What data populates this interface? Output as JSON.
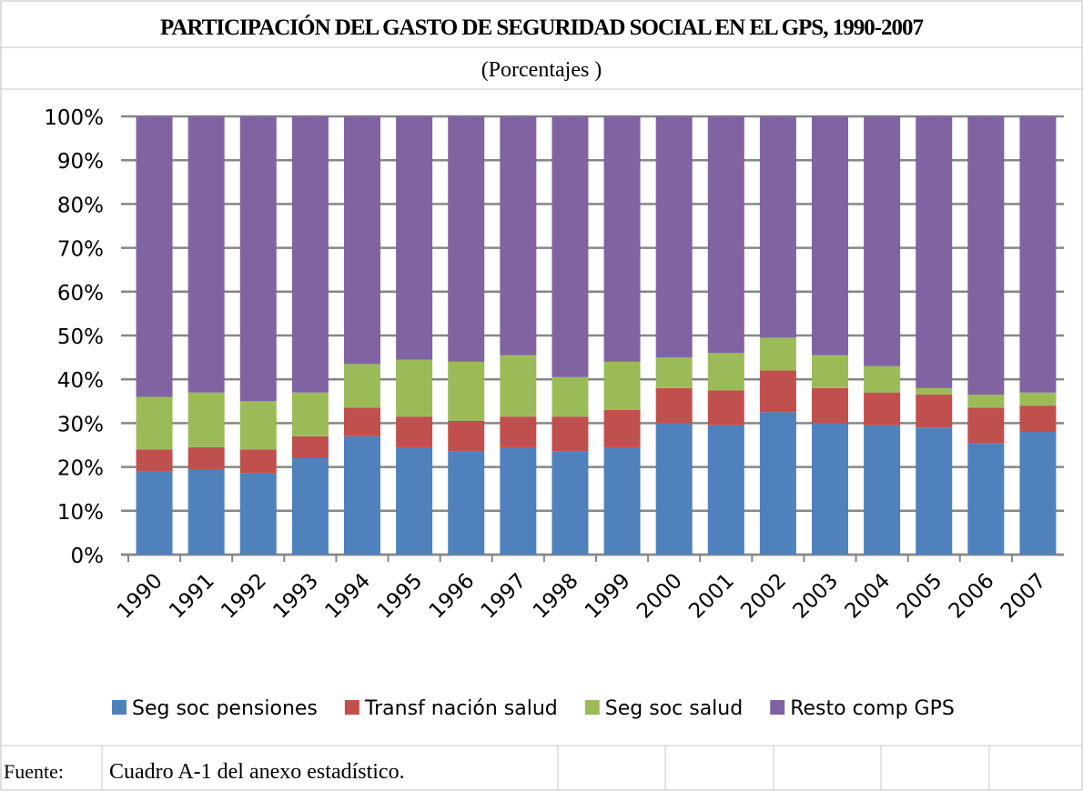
{
  "chart_data": {
    "type": "stacked_bar",
    "title": "PARTICIPACIÓN DEL GASTO DE SEGURIDAD SOCIAL EN EL GPS, 1990-2007",
    "subtitle": "(Porcentajes )",
    "categories": [
      "1990",
      "1991",
      "1992",
      "1993",
      "1994",
      "1995",
      "1996",
      "1997",
      "1998",
      "1999",
      "2000",
      "2001",
      "2002",
      "2003",
      "2004",
      "2005",
      "2006",
      "2007"
    ],
    "series": [
      {
        "name": "Seg soc pensiones",
        "color": "#4f81bd",
        "values": [
          19,
          19.5,
          18.5,
          22,
          27,
          24.5,
          23.5,
          24.5,
          23.5,
          24.5,
          30,
          29.5,
          32.5,
          30,
          29.5,
          29,
          25.5,
          28
        ]
      },
      {
        "name": "Transf nación salud",
        "color": "#c0504d",
        "values": [
          5,
          5,
          5.5,
          5,
          6.5,
          7,
          7,
          7,
          8,
          8.5,
          8,
          8,
          9.5,
          8,
          7.5,
          7.5,
          8,
          6
        ]
      },
      {
        "name": "Seg soc salud",
        "color": "#9bbb59",
        "values": [
          12,
          12.5,
          11,
          10,
          10,
          13,
          13.5,
          14,
          9,
          11,
          7,
          8.5,
          7.5,
          7.5,
          6,
          1.5,
          3,
          3
        ]
      },
      {
        "name": "Resto comp GPS",
        "color": "#8064a2",
        "values": [
          64,
          63,
          65,
          63,
          56.5,
          55.5,
          56,
          54.5,
          59.5,
          56,
          55,
          54,
          50.5,
          54.5,
          57,
          62,
          63.5,
          63
        ]
      }
    ],
    "ylim": [
      0,
      100
    ],
    "yticks": [
      {
        "value": 0,
        "label": "0%"
      },
      {
        "value": 10,
        "label": "10%"
      },
      {
        "value": 20,
        "label": "20%"
      },
      {
        "value": 30,
        "label": "30%"
      },
      {
        "value": 40,
        "label": "40%"
      },
      {
        "value": 50,
        "label": "50%"
      },
      {
        "value": 60,
        "label": "60%"
      },
      {
        "value": 70,
        "label": "70%"
      },
      {
        "value": 80,
        "label": "80%"
      },
      {
        "value": 90,
        "label": "90%"
      },
      {
        "value": 100,
        "label": "100%"
      }
    ],
    "grid": true,
    "legend": "bottom"
  },
  "source": {
    "label": "Fuente:",
    "text": "Cuadro A-1 del anexo estadístico."
  }
}
